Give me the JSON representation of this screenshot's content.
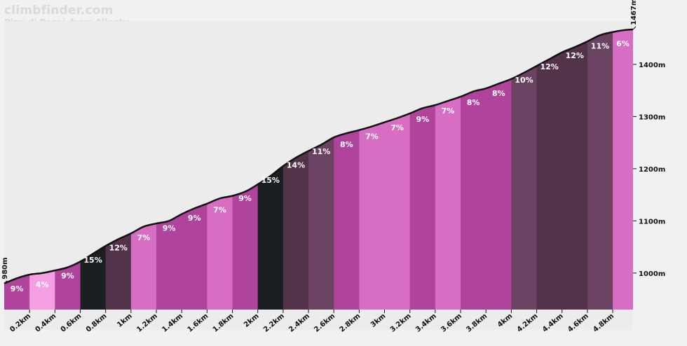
{
  "header": {
    "brand": "climbfinder.com",
    "subtitle": "Pian di Pezzè from Alleghe"
  },
  "chart_data": {
    "type": "area",
    "title": "",
    "xlabel": "",
    "ylabel": "",
    "x_unit": "km",
    "y_unit": "m",
    "xlim": [
      0,
      4.96
    ],
    "ylim": [
      930,
      1467
    ],
    "start_elevation_label": "980m",
    "end_elevation_label": "1467m",
    "y_ticks": [
      {
        "value": 1000,
        "label": "1000m"
      },
      {
        "value": 1100,
        "label": "1100m"
      },
      {
        "value": 1200,
        "label": "1200m"
      },
      {
        "value": 1300,
        "label": "1300m"
      },
      {
        "value": 1400,
        "label": "1400m"
      }
    ],
    "x_ticks": [
      {
        "value": 0.2,
        "label": "0.2km"
      },
      {
        "value": 0.4,
        "label": "0.4km"
      },
      {
        "value": 0.6,
        "label": "0.6km"
      },
      {
        "value": 0.8,
        "label": "0.8km"
      },
      {
        "value": 1.0,
        "label": "1km"
      },
      {
        "value": 1.2,
        "label": "1.2km"
      },
      {
        "value": 1.4,
        "label": "1.4km"
      },
      {
        "value": 1.6,
        "label": "1.6km"
      },
      {
        "value": 1.8,
        "label": "1.8km"
      },
      {
        "value": 2.0,
        "label": "2km"
      },
      {
        "value": 2.2,
        "label": "2.2km"
      },
      {
        "value": 2.4,
        "label": "2.4km"
      },
      {
        "value": 2.6,
        "label": "2.6km"
      },
      {
        "value": 2.8,
        "label": "2.8km"
      },
      {
        "value": 3.0,
        "label": "3km"
      },
      {
        "value": 3.2,
        "label": "3.2km"
      },
      {
        "value": 3.4,
        "label": "3.4km"
      },
      {
        "value": 3.6,
        "label": "3.6km"
      },
      {
        "value": 3.8,
        "label": "3.8km"
      },
      {
        "value": 4.0,
        "label": "4km"
      },
      {
        "value": 4.2,
        "label": "4.2km"
      },
      {
        "value": 4.4,
        "label": "4.4km"
      },
      {
        "value": 4.6,
        "label": "4.6km"
      },
      {
        "value": 4.8,
        "label": "4.8km"
      }
    ],
    "profile": [
      {
        "x": 0.0,
        "y": 980
      },
      {
        "x": 0.1,
        "y": 990
      },
      {
        "x": 0.2,
        "y": 997
      },
      {
        "x": 0.3,
        "y": 1000
      },
      {
        "x": 0.4,
        "y": 1005
      },
      {
        "x": 0.5,
        "y": 1011
      },
      {
        "x": 0.6,
        "y": 1022
      },
      {
        "x": 0.7,
        "y": 1037
      },
      {
        "x": 0.8,
        "y": 1052
      },
      {
        "x": 0.9,
        "y": 1065
      },
      {
        "x": 1.0,
        "y": 1076
      },
      {
        "x": 1.1,
        "y": 1089
      },
      {
        "x": 1.2,
        "y": 1095
      },
      {
        "x": 1.3,
        "y": 1100
      },
      {
        "x": 1.4,
        "y": 1113
      },
      {
        "x": 1.5,
        "y": 1124
      },
      {
        "x": 1.6,
        "y": 1133
      },
      {
        "x": 1.7,
        "y": 1143
      },
      {
        "x": 1.8,
        "y": 1148
      },
      {
        "x": 1.9,
        "y": 1156
      },
      {
        "x": 2.0,
        "y": 1170
      },
      {
        "x": 2.1,
        "y": 1186
      },
      {
        "x": 2.2,
        "y": 1205
      },
      {
        "x": 2.3,
        "y": 1221
      },
      {
        "x": 2.4,
        "y": 1234
      },
      {
        "x": 2.5,
        "y": 1246
      },
      {
        "x": 2.6,
        "y": 1260
      },
      {
        "x": 2.7,
        "y": 1268
      },
      {
        "x": 2.8,
        "y": 1274
      },
      {
        "x": 2.9,
        "y": 1281
      },
      {
        "x": 3.0,
        "y": 1289
      },
      {
        "x": 3.1,
        "y": 1297
      },
      {
        "x": 3.2,
        "y": 1306
      },
      {
        "x": 3.3,
        "y": 1316
      },
      {
        "x": 3.4,
        "y": 1322
      },
      {
        "x": 3.5,
        "y": 1330
      },
      {
        "x": 3.6,
        "y": 1338
      },
      {
        "x": 3.7,
        "y": 1348
      },
      {
        "x": 3.8,
        "y": 1354
      },
      {
        "x": 3.9,
        "y": 1363
      },
      {
        "x": 4.0,
        "y": 1372
      },
      {
        "x": 4.1,
        "y": 1384
      },
      {
        "x": 4.2,
        "y": 1397
      },
      {
        "x": 4.3,
        "y": 1410
      },
      {
        "x": 4.4,
        "y": 1423
      },
      {
        "x": 4.5,
        "y": 1433
      },
      {
        "x": 4.6,
        "y": 1444
      },
      {
        "x": 4.7,
        "y": 1456
      },
      {
        "x": 4.8,
        "y": 1462
      },
      {
        "x": 4.9,
        "y": 1466
      },
      {
        "x": 4.96,
        "y": 1467
      }
    ],
    "segments": [
      {
        "start": 0.0,
        "end": 0.2,
        "grade": 9,
        "label": "9%",
        "color": "#b0449d"
      },
      {
        "start": 0.2,
        "end": 0.4,
        "grade": 4,
        "label": "4%",
        "color": "#f49ee3"
      },
      {
        "start": 0.4,
        "end": 0.6,
        "grade": 9,
        "label": "9%",
        "color": "#b0449d"
      },
      {
        "start": 0.6,
        "end": 0.8,
        "grade": 15,
        "label": "15%",
        "color": "#1c1f22"
      },
      {
        "start": 0.8,
        "end": 1.0,
        "grade": 12,
        "label": "12%",
        "color": "#52334a"
      },
      {
        "start": 1.0,
        "end": 1.2,
        "grade": 7,
        "label": "7%",
        "color": "#d86dc4"
      },
      {
        "start": 1.2,
        "end": 1.4,
        "grade": 9,
        "label": "9%",
        "color": "#b0449d"
      },
      {
        "start": 1.4,
        "end": 1.6,
        "grade": 9,
        "label": "9%",
        "color": "#b0449d"
      },
      {
        "start": 1.6,
        "end": 1.8,
        "grade": 7,
        "label": "7%",
        "color": "#d86dc4"
      },
      {
        "start": 1.8,
        "end": 2.0,
        "grade": 9,
        "label": "9%",
        "color": "#b0449d"
      },
      {
        "start": 2.0,
        "end": 2.2,
        "grade": 15,
        "label": "15%",
        "color": "#1c1f22"
      },
      {
        "start": 2.2,
        "end": 2.4,
        "grade": 14,
        "label": "14%",
        "color": "#52334a"
      },
      {
        "start": 2.4,
        "end": 2.6,
        "grade": 11,
        "label": "11%",
        "color": "#6a4262"
      },
      {
        "start": 2.6,
        "end": 2.8,
        "grade": 8,
        "label": "8%",
        "color": "#b0449d"
      },
      {
        "start": 2.8,
        "end": 3.0,
        "grade": 7,
        "label": "7%",
        "color": "#d86dc4"
      },
      {
        "start": 3.0,
        "end": 3.2,
        "grade": 7,
        "label": "7%",
        "color": "#d86dc4"
      },
      {
        "start": 3.2,
        "end": 3.4,
        "grade": 9,
        "label": "9%",
        "color": "#b0449d"
      },
      {
        "start": 3.4,
        "end": 3.6,
        "grade": 7,
        "label": "7%",
        "color": "#d86dc4"
      },
      {
        "start": 3.6,
        "end": 3.8,
        "grade": 8,
        "label": "8%",
        "color": "#b0449d"
      },
      {
        "start": 3.8,
        "end": 4.0,
        "grade": 8,
        "label": "8%",
        "color": "#b0449d"
      },
      {
        "start": 4.0,
        "end": 4.2,
        "grade": 10,
        "label": "10%",
        "color": "#6a4262"
      },
      {
        "start": 4.2,
        "end": 4.4,
        "grade": 12,
        "label": "12%",
        "color": "#52334a"
      },
      {
        "start": 4.4,
        "end": 4.6,
        "grade": 12,
        "label": "12%",
        "color": "#52334a"
      },
      {
        "start": 4.6,
        "end": 4.8,
        "grade": 11,
        "label": "11%",
        "color": "#6a4262"
      },
      {
        "start": 4.8,
        "end": 4.96,
        "grade": 6,
        "label": "6%",
        "color": "#d86dc4"
      }
    ],
    "outline_color": "#111111",
    "grid": false,
    "legend": "none"
  }
}
